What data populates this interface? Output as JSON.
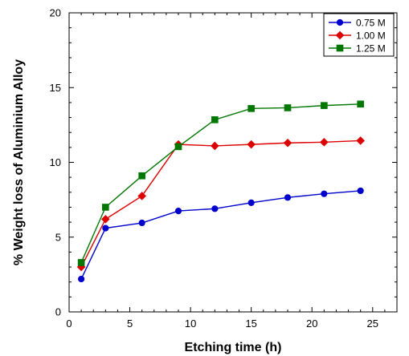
{
  "chart_data": {
    "type": "line",
    "xlabel": "Etching time (h)",
    "ylabel": "% Weight loss of Aluminium Alloy",
    "xlim": [
      0,
      27
    ],
    "ylim": [
      0,
      20
    ],
    "x_ticks": [
      0,
      5,
      10,
      15,
      20,
      25
    ],
    "y_ticks": [
      0,
      5,
      10,
      15,
      20
    ],
    "grid": false,
    "legend_position": "top-right",
    "x": [
      1,
      3,
      6,
      9,
      12,
      15,
      18,
      21,
      24
    ],
    "series": [
      {
        "name": "0.75 M",
        "color": "#0000cc",
        "marker": "circle",
        "values": [
          2.2,
          5.6,
          5.95,
          6.75,
          6.9,
          7.3,
          7.65,
          7.9,
          8.1
        ]
      },
      {
        "name": "1.00 M",
        "color": "#dd0000",
        "marker": "diamond",
        "values": [
          3.0,
          6.2,
          7.75,
          11.2,
          11.1,
          11.2,
          11.3,
          11.35,
          11.45
        ]
      },
      {
        "name": "1.25 M",
        "color": "#007700",
        "marker": "square",
        "values": [
          3.3,
          7.0,
          9.1,
          11.05,
          12.85,
          13.6,
          13.65,
          13.8,
          13.9
        ]
      }
    ]
  }
}
